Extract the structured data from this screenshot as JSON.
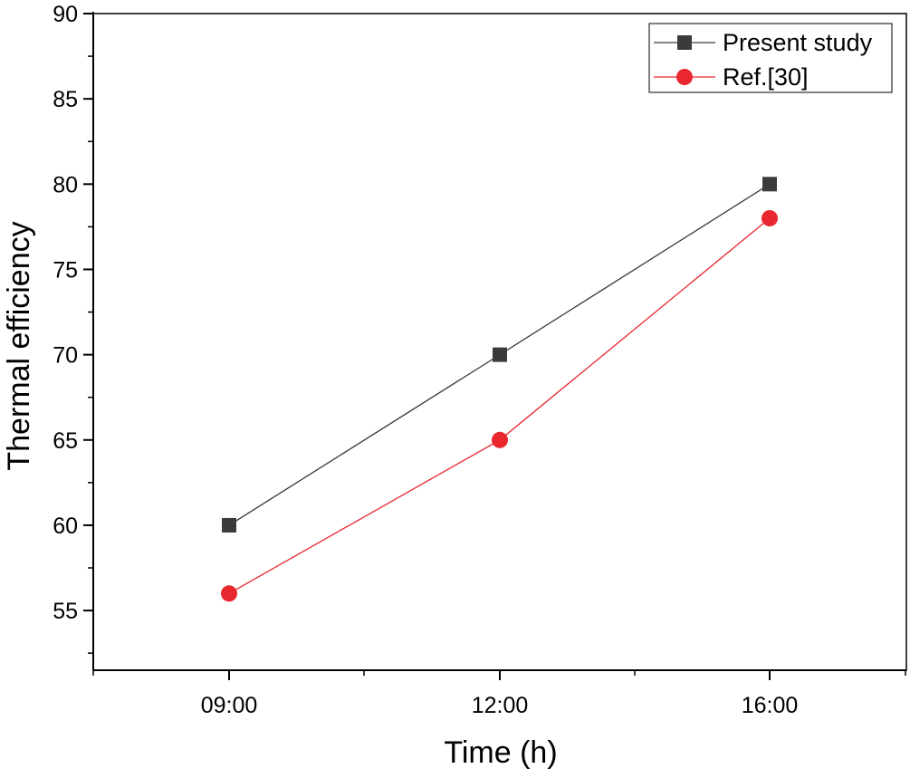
{
  "chart_data": {
    "type": "line",
    "title": "",
    "xlabel": "Time (h)",
    "ylabel": "Thermal efficiency",
    "categories": [
      "09:00",
      "12:00",
      "16:00"
    ],
    "x_tick_labels": [
      "09:00",
      "12:00",
      "16:00"
    ],
    "y_tick_labels": [
      "55",
      "60",
      "65",
      "70",
      "75",
      "80",
      "85",
      "90"
    ],
    "y_ticks": [
      55,
      60,
      65,
      70,
      75,
      80,
      85,
      90
    ],
    "ylim": [
      51.5,
      90
    ],
    "grid": false,
    "legend_position": "top-right",
    "series": [
      {
        "name": "Present study",
        "values": [
          60,
          70,
          80
        ],
        "color": "#3b3b3b",
        "marker": "square"
      },
      {
        "name": "Ref.[30]",
        "values": [
          56,
          65,
          78
        ],
        "color": "#e8272e",
        "marker": "circle"
      }
    ]
  }
}
